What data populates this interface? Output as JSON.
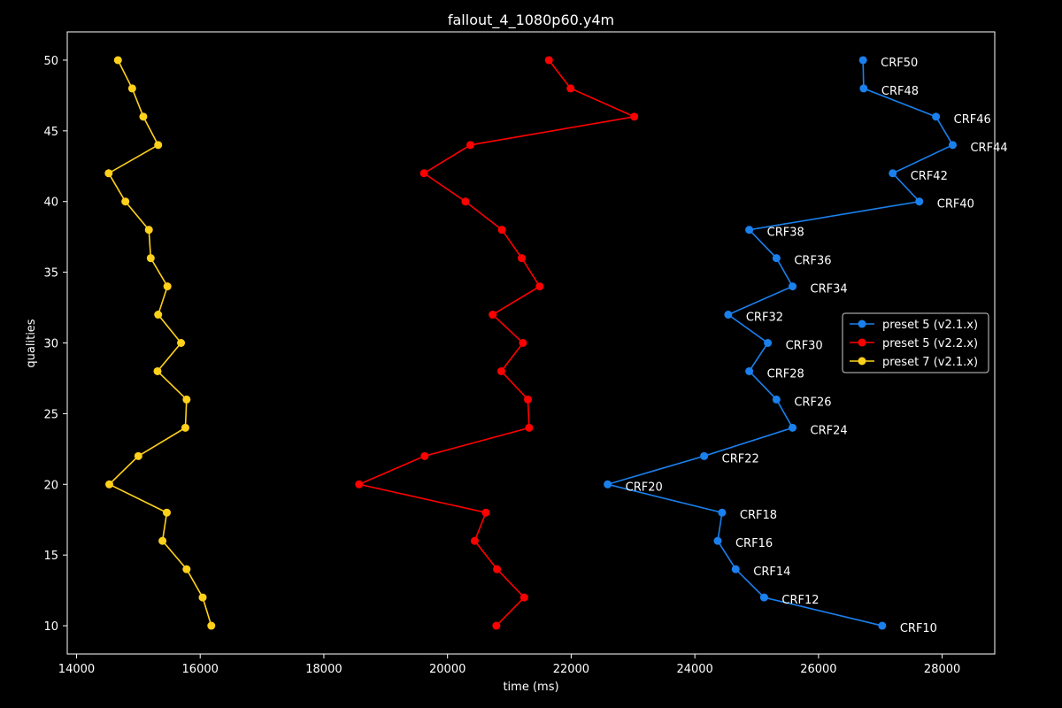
{
  "chart_data": {
    "type": "line",
    "title": "fallout_4_1080p60.y4m",
    "xlabel": "time (ms)",
    "ylabel": "qualities",
    "xlim": [
      13850,
      28850
    ],
    "ylim": [
      8,
      52
    ],
    "xticks": [
      14000,
      16000,
      18000,
      20000,
      22000,
      24000,
      26000,
      28000
    ],
    "yticks": [
      10,
      15,
      20,
      25,
      30,
      35,
      40,
      45,
      50
    ],
    "grid": false,
    "legend_position": "center-right",
    "y": [
      50,
      48,
      46,
      44,
      42,
      40,
      38,
      36,
      34,
      32,
      30,
      28,
      26,
      24,
      22,
      20,
      18,
      16,
      14,
      12,
      10
    ],
    "series": [
      {
        "name": "preset 5 (v2.1.x)",
        "color": "#1a80ee",
        "x": [
          26720,
          26730,
          27900,
          28170,
          27200,
          27630,
          24880,
          25320,
          25580,
          24540,
          25180,
          24880,
          25320,
          25580,
          24150,
          22590,
          24440,
          24370,
          24660,
          25120,
          27030
        ]
      },
      {
        "name": "preset 5 (v2.2.x)",
        "color": "#ff0000",
        "x": [
          21640,
          21990,
          23020,
          20370,
          19620,
          20290,
          20880,
          21200,
          21490,
          20730,
          21220,
          20870,
          21300,
          21320,
          19630,
          18570,
          20620,
          20440,
          20800,
          21240,
          20790
        ]
      },
      {
        "name": "preset 7 (v2.1.x)",
        "color": "#ffd11a",
        "x": [
          14670,
          14900,
          15080,
          15320,
          14520,
          14790,
          15170,
          15200,
          15470,
          15320,
          15690,
          15310,
          15780,
          15760,
          15000,
          14530,
          15460,
          15390,
          15780,
          16040,
          16180
        ]
      }
    ],
    "annotations": [
      "CRF50",
      "CRF48",
      "CRF46",
      "CRF44",
      "CRF42",
      "CRF40",
      "CRF38",
      "CRF36",
      "CRF34",
      "CRF32",
      "CRF30",
      "CRF28",
      "CRF26",
      "CRF24",
      "CRF22",
      "CRF20",
      "CRF18",
      "CRF16",
      "CRF14",
      "CRF12",
      "CRF10"
    ]
  }
}
